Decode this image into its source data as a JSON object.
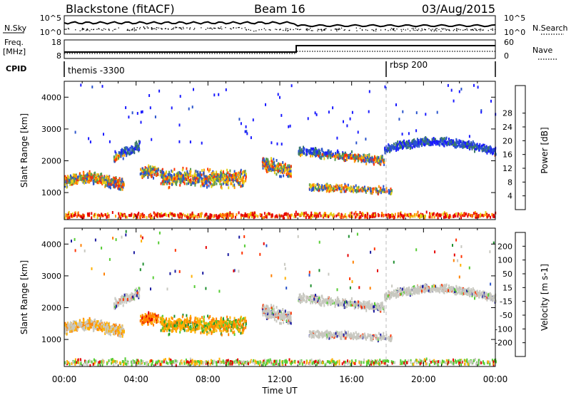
{
  "header": {
    "station": "Blackstone (fitACF)",
    "beam": "Beam 16",
    "date": "03/Aug/2015"
  },
  "labels": {
    "nsky": "N.Sky",
    "freq_line1": "Freq.",
    "freq_line2": "[MHz]",
    "cpid": "CPID",
    "nsearch": "N.Search",
    "nave": "Nave"
  },
  "top_axes": {
    "nsky_ticks": [
      "10^5",
      "10^0"
    ],
    "freq_ticks": [
      "18",
      "8"
    ],
    "nave_ticks": [
      "60",
      "0"
    ]
  },
  "cpid_segments": [
    {
      "label": "themis -3300",
      "start_hour": 0
    },
    {
      "label": "rbsp 200",
      "start_hour": 18
    }
  ],
  "chart_data": [
    {
      "type": "heatmap",
      "panel": "power",
      "ylabel": "Slant Range [km]",
      "xlabel": "Time UT",
      "x_ticks": [
        "00:00",
        "04:00",
        "08:00",
        "12:00",
        "16:00",
        "20:00",
        "00:00"
      ],
      "y_ticks": [
        1000,
        2000,
        3000,
        4000
      ],
      "ylim": [
        150,
        4500
      ],
      "colorbar": {
        "label": "Power [dB]",
        "ticks": [
          4,
          8,
          12,
          16,
          20,
          24,
          28
        ],
        "colors": [
          "#1a1aff",
          "#2b55cc",
          "#3a7a66",
          "#5a9a50",
          "#e3d21a",
          "#ff9900",
          "#ff6600",
          "#ff3300",
          "#e60000"
        ]
      }
    },
    {
      "type": "heatmap",
      "panel": "velocity",
      "ylabel": "Slant Range [km]",
      "xlabel": "Time UT",
      "x_ticks": [
        "00:00",
        "04:00",
        "08:00",
        "12:00",
        "16:00",
        "20:00",
        "00:00"
      ],
      "y_ticks": [
        1000,
        2000,
        3000,
        4000
      ],
      "ylim": [
        150,
        4500
      ],
      "colorbar": {
        "label": "Velocity [m s-1]",
        "ticks": [
          200,
          100,
          50,
          15,
          -15,
          -50,
          -100,
          -200
        ],
        "colors": [
          "#1a1aa0",
          "#2b55cc",
          "#1f8f2f",
          "#55cc33",
          "#c8c8c0",
          "#ffb000",
          "#ff8000",
          "#ff3300",
          "#e60000"
        ]
      }
    }
  ]
}
